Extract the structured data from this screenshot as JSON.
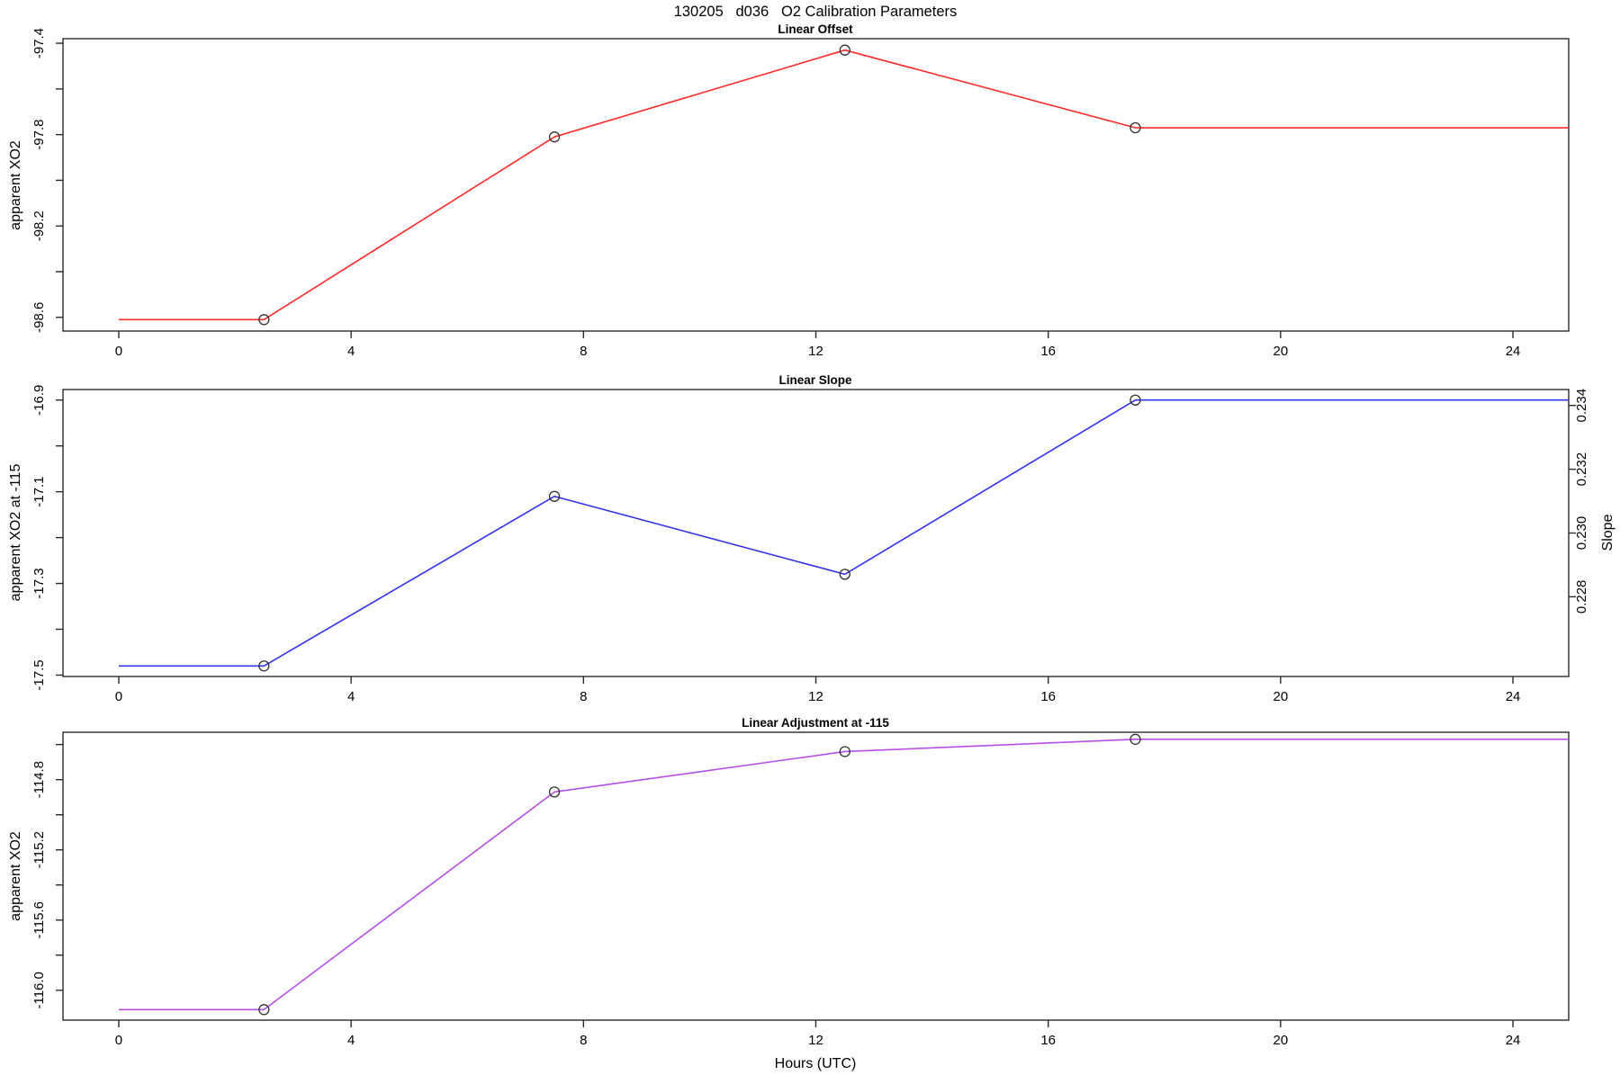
{
  "header": {
    "title": "130205   d036   O2 Calibration Parameters"
  },
  "chart_data": [
    {
      "type": "line",
      "title": "Linear Offset",
      "ylabel": "apparent XO2",
      "color": "#ff2a2a",
      "marker_color": "#303030",
      "x": [
        2.5,
        7.5,
        12.5,
        17.5
      ],
      "y": [
        -98.61,
        -97.81,
        -97.43,
        -97.77
      ],
      "line_start_x": 0,
      "xlim": [
        -0.96,
        24.96
      ],
      "ylim": [
        -98.66,
        -97.38
      ],
      "grid": false,
      "xticks": [
        {
          "value": 0,
          "label": "0"
        },
        {
          "value": 4,
          "label": "4"
        },
        {
          "value": 8,
          "label": "8"
        },
        {
          "value": 12,
          "label": "12"
        },
        {
          "value": 16,
          "label": "16"
        },
        {
          "value": 20,
          "label": "20"
        },
        {
          "value": 24,
          "label": "24"
        }
      ],
      "yticks": [
        {
          "value": -98.6,
          "label": "-98.6"
        },
        {
          "value": -98.4,
          "label": null
        },
        {
          "value": -98.2,
          "label": "-98.2"
        },
        {
          "value": -98.0,
          "label": null
        },
        {
          "value": -97.8,
          "label": "-97.8"
        },
        {
          "value": -97.6,
          "label": null
        },
        {
          "value": -97.4,
          "label": "-97.4"
        }
      ]
    },
    {
      "type": "line",
      "title": "Linear Slope",
      "ylabel": "apparent XO2 at -115",
      "color": "#3333ee",
      "marker_color": "#303030",
      "x": [
        2.5,
        7.5,
        12.5,
        17.5
      ],
      "y": [
        -17.48,
        -17.11,
        -17.28,
        -16.9
      ],
      "line_start_x": 0,
      "xlim": [
        -0.96,
        24.96
      ],
      "ylim": [
        -17.503,
        -16.877
      ],
      "grid": false,
      "xticks": [
        {
          "value": 0,
          "label": "0"
        },
        {
          "value": 4,
          "label": "4"
        },
        {
          "value": 8,
          "label": "8"
        },
        {
          "value": 12,
          "label": "12"
        },
        {
          "value": 16,
          "label": "16"
        },
        {
          "value": 20,
          "label": "20"
        },
        {
          "value": 24,
          "label": "24"
        }
      ],
      "yticks": [
        {
          "value": -17.5,
          "label": "-17.5"
        },
        {
          "value": -17.4,
          "label": null
        },
        {
          "value": -17.3,
          "label": "-17.3"
        },
        {
          "value": -17.2,
          "label": null
        },
        {
          "value": -17.1,
          "label": "-17.1"
        },
        {
          "value": -17.0,
          "label": null
        },
        {
          "value": -16.9,
          "label": "-16.9"
        }
      ],
      "right_axis": {
        "label": "Slope",
        "ylim": [
          0.2255,
          0.2345
        ],
        "ticks": [
          {
            "value": 0.228,
            "label": "0.228"
          },
          {
            "value": 0.23,
            "label": "0.230"
          },
          {
            "value": 0.232,
            "label": "0.232"
          },
          {
            "value": 0.234,
            "label": "0.234"
          }
        ]
      }
    },
    {
      "type": "line",
      "title": "Linear Adjustment at -115",
      "ylabel": "apparent XO2",
      "xlabel": "Hours (UTC)",
      "color": "#b44fe8",
      "marker_color": "#303030",
      "x": [
        2.5,
        7.5,
        12.5,
        17.5
      ],
      "y": [
        -116.11,
        -114.87,
        -114.64,
        -114.57
      ],
      "line_start_x": 0,
      "xlim": [
        -0.96,
        24.96
      ],
      "ylim": [
        -116.17,
        -114.53
      ],
      "grid": false,
      "xticks": [
        {
          "value": 0,
          "label": "0"
        },
        {
          "value": 4,
          "label": "4"
        },
        {
          "value": 8,
          "label": "8"
        },
        {
          "value": 12,
          "label": "12"
        },
        {
          "value": 16,
          "label": "16"
        },
        {
          "value": 20,
          "label": "20"
        },
        {
          "value": 24,
          "label": "24"
        }
      ],
      "yticks": [
        {
          "value": -116.0,
          "label": "-116.0"
        },
        {
          "value": -115.8,
          "label": null
        },
        {
          "value": -115.6,
          "label": "-115.6"
        },
        {
          "value": -115.4,
          "label": null
        },
        {
          "value": -115.2,
          "label": "-115.2"
        },
        {
          "value": -115.0,
          "label": null
        },
        {
          "value": -114.8,
          "label": "-114.8"
        },
        {
          "value": -114.6,
          "label": null
        }
      ]
    }
  ]
}
